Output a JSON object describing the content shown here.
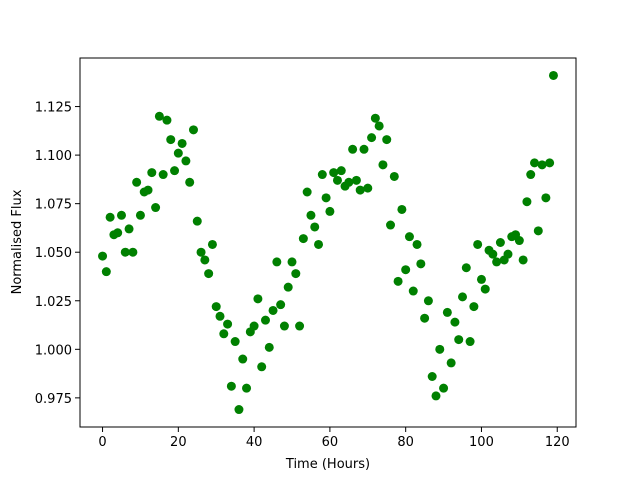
{
  "chart_data": {
    "type": "scatter",
    "x_label": "Time (Hours)",
    "y_label": "Normalised Flux",
    "color": "#008000",
    "x": [
      0,
      1,
      2,
      3,
      4,
      5,
      6,
      7,
      8,
      9,
      10,
      11,
      12,
      13,
      14,
      15,
      16,
      17,
      18,
      19,
      20,
      21,
      22,
      23,
      24,
      25,
      26,
      27,
      28,
      29,
      30,
      31,
      32,
      33,
      34,
      35,
      36,
      37,
      38,
      39,
      40,
      41,
      42,
      43,
      44,
      45,
      46,
      47,
      48,
      49,
      50,
      51,
      52,
      53,
      54,
      55,
      56,
      57,
      58,
      59,
      60,
      61,
      62,
      63,
      64,
      65,
      66,
      67,
      68,
      69,
      70,
      71,
      72,
      73,
      74,
      75,
      76,
      77,
      78,
      79,
      80,
      81,
      82,
      83,
      84,
      85,
      86,
      87,
      88,
      89,
      90,
      91,
      92,
      93,
      94,
      95,
      96,
      97,
      98,
      99,
      100,
      101,
      102,
      103,
      104,
      105,
      106,
      107,
      108,
      109,
      110,
      111,
      112,
      113,
      114,
      115,
      116,
      117,
      118,
      119
    ],
    "values": [
      1.048,
      1.04,
      1.068,
      1.059,
      1.06,
      1.069,
      1.05,
      1.062,
      1.05,
      1.086,
      1.069,
      1.081,
      1.082,
      1.091,
      1.073,
      1.12,
      1.09,
      1.118,
      1.108,
      1.092,
      1.101,
      1.106,
      1.097,
      1.086,
      1.113,
      1.066,
      1.05,
      1.046,
      1.039,
      1.054,
      1.022,
      1.017,
      1.008,
      1.013,
      0.981,
      1.004,
      0.969,
      0.995,
      0.98,
      1.009,
      1.012,
      1.026,
      0.991,
      1.015,
      1.001,
      1.02,
      1.045,
      1.023,
      1.012,
      1.032,
      1.045,
      1.039,
      1.012,
      1.057,
      1.081,
      1.069,
      1.063,
      1.054,
      1.09,
      1.078,
      1.071,
      1.091,
      1.087,
      1.092,
      1.084,
      1.086,
      1.103,
      1.087,
      1.082,
      1.103,
      1.083,
      1.109,
      1.119,
      1.115,
      1.095,
      1.108,
      1.064,
      1.089,
      1.035,
      1.072,
      1.041,
      1.058,
      1.03,
      1.054,
      1.044,
      1.016,
      1.025,
      0.986,
      0.976,
      1.0,
      0.98,
      1.019,
      0.993,
      1.014,
      1.005,
      1.027,
      1.042,
      1.004,
      1.022,
      1.054,
      1.036,
      1.031,
      1.051,
      1.049,
      1.045,
      1.055,
      1.046,
      1.049,
      1.058,
      1.059,
      1.056,
      1.046,
      1.076,
      1.09,
      1.096,
      1.061,
      1.095,
      1.078,
      1.096,
      1.141
    ],
    "xlim": [
      -5.95,
      124.95
    ],
    "xticks": [
      0,
      20,
      40,
      60,
      80,
      100,
      120
    ],
    "ylim": [
      0.96,
      1.15
    ],
    "yticks": [
      0.975,
      {
        "value": 1.0,
        "label": "1.000"
      },
      1.025,
      {
        "value": 1.05,
        "label": "1.050"
      },
      1.075,
      {
        "value": 1.1,
        "label": "1.100"
      },
      1.125
    ]
  }
}
